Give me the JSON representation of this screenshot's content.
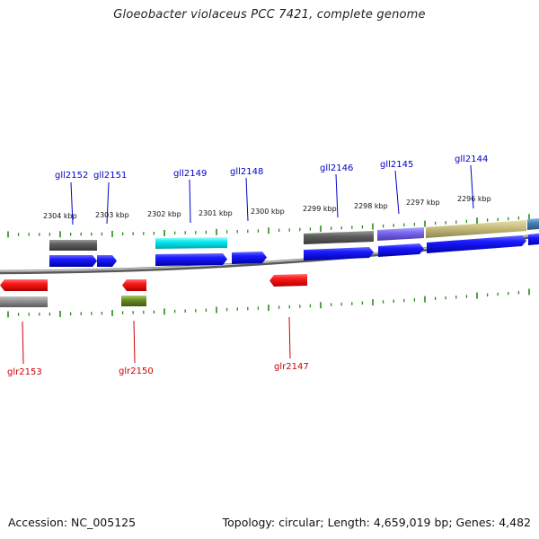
{
  "title": "Gloeobacter violaceus PCC 7421, complete genome",
  "footer": {
    "accession": "Accession: NC_005125",
    "summary": "Topology: circular; Length: 4,659,019 bp; Genes: 4,482"
  },
  "colors": {
    "forward_label": "#0000cc",
    "reverse_label": "#cc0000",
    "forward_gene": "#0a0ae6",
    "reverse_gene": "#ee1111",
    "tick": "#2a8a1a",
    "backbone": "#8a8a8a"
  },
  "scale_labels": [
    "2304 kbp",
    "2303 kbp",
    "2302 kbp",
    "2301 kbp",
    "2300 kbp",
    "2299 kbp",
    "2298 kbp",
    "2297 kbp",
    "2296 kbp"
  ],
  "forward_gene_labels": [
    "gll2152",
    "gll2151",
    "gll2149",
    "gll2148",
    "gll2146",
    "gll2145",
    "gll2144"
  ],
  "reverse_gene_labels": [
    "glr2153",
    "glr2150",
    "glr2147"
  ],
  "cog_colors": [
    "#6e6e6e",
    "#00e5ee",
    "#6a6a6a",
    "#7b68ee",
    "#bdb76b",
    "#4682b4",
    "#6b8e23"
  ]
}
